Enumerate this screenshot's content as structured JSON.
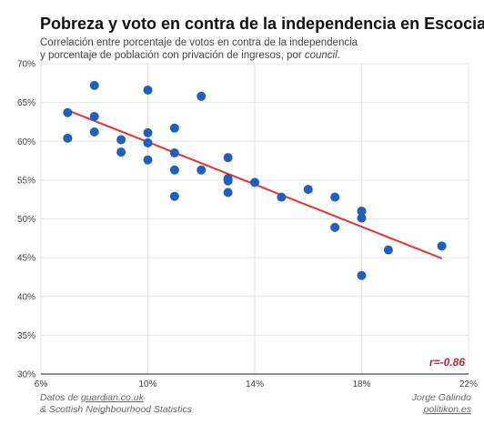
{
  "chart_data": {
    "type": "scatter",
    "title": "Pobreza y voto en contra de la independencia en Escocia",
    "subtitle_line1": "Correlación entre porcentaje de votos en contra de la independencia",
    "subtitle_line2": "y porcentaje de población con privación de ingresos, por ",
    "subtitle_italic": "council",
    "subtitle_end": ".",
    "xlabel": "",
    "ylabel": "",
    "xlim": [
      6,
      22
    ],
    "ylim": [
      30,
      70
    ],
    "x_ticks": [
      "6%",
      "10%",
      "14%",
      "18%",
      "22%"
    ],
    "x_tick_values": [
      6,
      10,
      14,
      18,
      22
    ],
    "y_ticks": [
      "30%",
      "35%",
      "40%",
      "45%",
      "50%",
      "55%",
      "60%",
      "65%",
      "70%"
    ],
    "y_tick_values": [
      30,
      35,
      40,
      45,
      50,
      55,
      60,
      65,
      70
    ],
    "grid": true,
    "point_color": "#1f5fbf",
    "line_color": "#e8322e",
    "points": [
      {
        "x": 7,
        "y": 63.7
      },
      {
        "x": 7,
        "y": 60.4
      },
      {
        "x": 8,
        "y": 67.2
      },
      {
        "x": 8,
        "y": 63.2
      },
      {
        "x": 8,
        "y": 61.2
      },
      {
        "x": 9,
        "y": 60.2
      },
      {
        "x": 9,
        "y": 58.6
      },
      {
        "x": 10,
        "y": 66.6
      },
      {
        "x": 10,
        "y": 61.1
      },
      {
        "x": 10,
        "y": 59.8
      },
      {
        "x": 10,
        "y": 57.6
      },
      {
        "x": 11,
        "y": 61.7
      },
      {
        "x": 11,
        "y": 58.5
      },
      {
        "x": 11,
        "y": 56.3
      },
      {
        "x": 11,
        "y": 52.9
      },
      {
        "x": 12,
        "y": 65.8
      },
      {
        "x": 12,
        "y": 56.3
      },
      {
        "x": 13,
        "y": 57.9
      },
      {
        "x": 13,
        "y": 55.2
      },
      {
        "x": 13,
        "y": 54.9
      },
      {
        "x": 13,
        "y": 53.4
      },
      {
        "x": 14,
        "y": 54.7
      },
      {
        "x": 15,
        "y": 52.8
      },
      {
        "x": 16,
        "y": 53.8
      },
      {
        "x": 17,
        "y": 52.8
      },
      {
        "x": 17,
        "y": 48.9
      },
      {
        "x": 18,
        "y": 51.0
      },
      {
        "x": 18,
        "y": 50.1
      },
      {
        "x": 18,
        "y": 42.7
      },
      {
        "x": 19,
        "y": 46.0
      },
      {
        "x": 21,
        "y": 46.5
      }
    ],
    "trend_line": [
      {
        "x": 7,
        "y": 64.0
      },
      {
        "x": 21,
        "y": 44.9
      }
    ],
    "annotation": "r=-0.86"
  },
  "footer": {
    "left_prefix": "Datos de ",
    "left_link": "guardian.co.uk",
    "left_line2": "& Scottish Neighbourhood Statistics",
    "right_line1": "Jorge Galindo",
    "right_link": "politikon.es"
  }
}
